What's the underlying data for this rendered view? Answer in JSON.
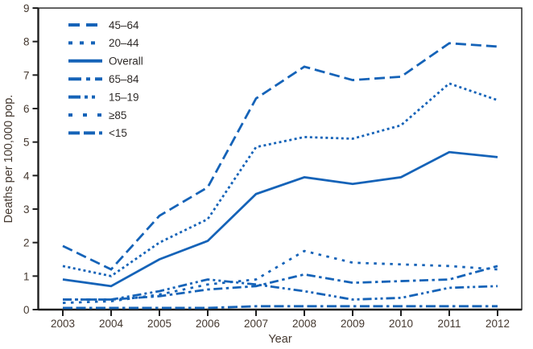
{
  "chart_data": {
    "type": "line",
    "title": "",
    "xlabel": "Year",
    "ylabel": "Deaths per 100,000 pop.",
    "x": [
      2003,
      2004,
      2005,
      2006,
      2007,
      2008,
      2009,
      2010,
      2011,
      2012
    ],
    "ylim": [
      0,
      9
    ],
    "yticks": [
      0,
      1,
      2,
      3,
      4,
      5,
      6,
      7,
      8,
      9
    ],
    "grid": false,
    "legend_position": "inside top-left",
    "line_color": "#1563b8",
    "series": [
      {
        "name": "45–64",
        "style": "dashed",
        "values": [
          1.9,
          1.2,
          2.8,
          3.65,
          6.3,
          7.25,
          6.85,
          6.95,
          7.95,
          7.85
        ]
      },
      {
        "name": "20–44",
        "style": "dotted",
        "values": [
          1.3,
          1.0,
          2.0,
          2.7,
          4.85,
          5.15,
          5.1,
          5.5,
          6.75,
          6.25
        ]
      },
      {
        "name": "Overall",
        "style": "solid",
        "values": [
          0.9,
          0.7,
          1.5,
          2.05,
          3.45,
          3.95,
          3.75,
          3.95,
          4.7,
          4.55
        ]
      },
      {
        "name": "65–84",
        "style": "dash-dot",
        "values": [
          0.3,
          0.3,
          0.4,
          0.6,
          0.7,
          1.05,
          0.8,
          0.85,
          0.9,
          1.3
        ]
      },
      {
        "name": "15–19",
        "style": "dash-dot-dot",
        "values": [
          0.3,
          0.3,
          0.55,
          0.9,
          0.75,
          0.55,
          0.3,
          0.35,
          0.65,
          0.7
        ]
      },
      {
        "name": "≥85",
        "style": "sparse-dotted",
        "values": [
          0.2,
          0.25,
          0.45,
          0.75,
          0.9,
          1.75,
          1.4,
          1.35,
          1.3,
          1.2
        ]
      },
      {
        "name": "<15",
        "style": "long-dash-dash-dot",
        "values": [
          0.05,
          0.05,
          0.05,
          0.05,
          0.1,
          0.1,
          0.1,
          0.1,
          0.1,
          0.1
        ]
      }
    ]
  },
  "colors": {
    "line": "#1563b8",
    "frame": "#1f1f1f",
    "tick_text": "#44382f",
    "legend_text": "#2e2a28"
  }
}
